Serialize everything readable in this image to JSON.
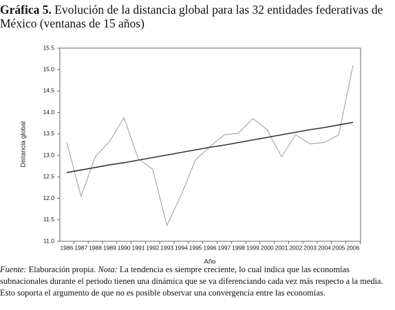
{
  "chart_data": {
    "type": "line",
    "title_label": "Gráfica 5.",
    "title": "Evolución de la distancia global para las 32 entidades federativas de México (ventanas de 15 años)",
    "ylabel": "Distancia global",
    "xlabel": "Año",
    "categories": [
      "1986",
      "1987",
      "1988",
      "1989",
      "1990",
      "1991",
      "1992",
      "1993",
      "1994",
      "1995",
      "1996",
      "1997",
      "1998",
      "1999",
      "2000",
      "2001",
      "2002",
      "2003",
      "2004",
      "2005",
      "2006"
    ],
    "series": [
      {
        "color": "#999999",
        "values": [
          13.3,
          12.05,
          12.97,
          13.33,
          13.88,
          12.92,
          12.68,
          11.37,
          12.08,
          12.9,
          13.2,
          13.48,
          13.52,
          13.86,
          13.6,
          12.97,
          13.48,
          13.27,
          13.3,
          13.48,
          15.1
        ]
      },
      {
        "color": "#333333",
        "values": [
          12.6,
          12.66,
          12.72,
          12.78,
          12.83,
          12.89,
          12.95,
          13.01,
          13.07,
          13.13,
          13.19,
          13.24,
          13.3,
          13.36,
          13.42,
          13.48,
          13.54,
          13.6,
          13.65,
          13.71,
          13.77
        ]
      }
    ],
    "ylim": [
      11.0,
      15.5
    ],
    "yticks": [
      {
        "value": 11.0,
        "label": "11.0"
      },
      {
        "value": 11.5,
        "label": "11.5"
      },
      {
        "value": 12.0,
        "label": "12.0"
      },
      {
        "value": 12.5,
        "label": "12.5"
      },
      {
        "value": 13.0,
        "label": "13.0"
      },
      {
        "value": 13.5,
        "label": "13.5"
      },
      {
        "value": 14.0,
        "label": "14.0"
      },
      {
        "value": 14.5,
        "label": "14.5"
      },
      {
        "value": 15.0,
        "label": "15.0"
      },
      {
        "value": 15.5,
        "label": "15.5"
      }
    ],
    "grid": false,
    "source_label": "Fuente:",
    "source": "Elaboración propia.",
    "note_label": "Nota:",
    "note": "La tendencia es siempre creciente, lo cual indica que las economías subnacionales durante el periodo tienen una dinámica que se va diferenciando cada vez más respecto a la media. Esto soporta el argumento de que no es posible observar una convergencia entre las economías."
  }
}
